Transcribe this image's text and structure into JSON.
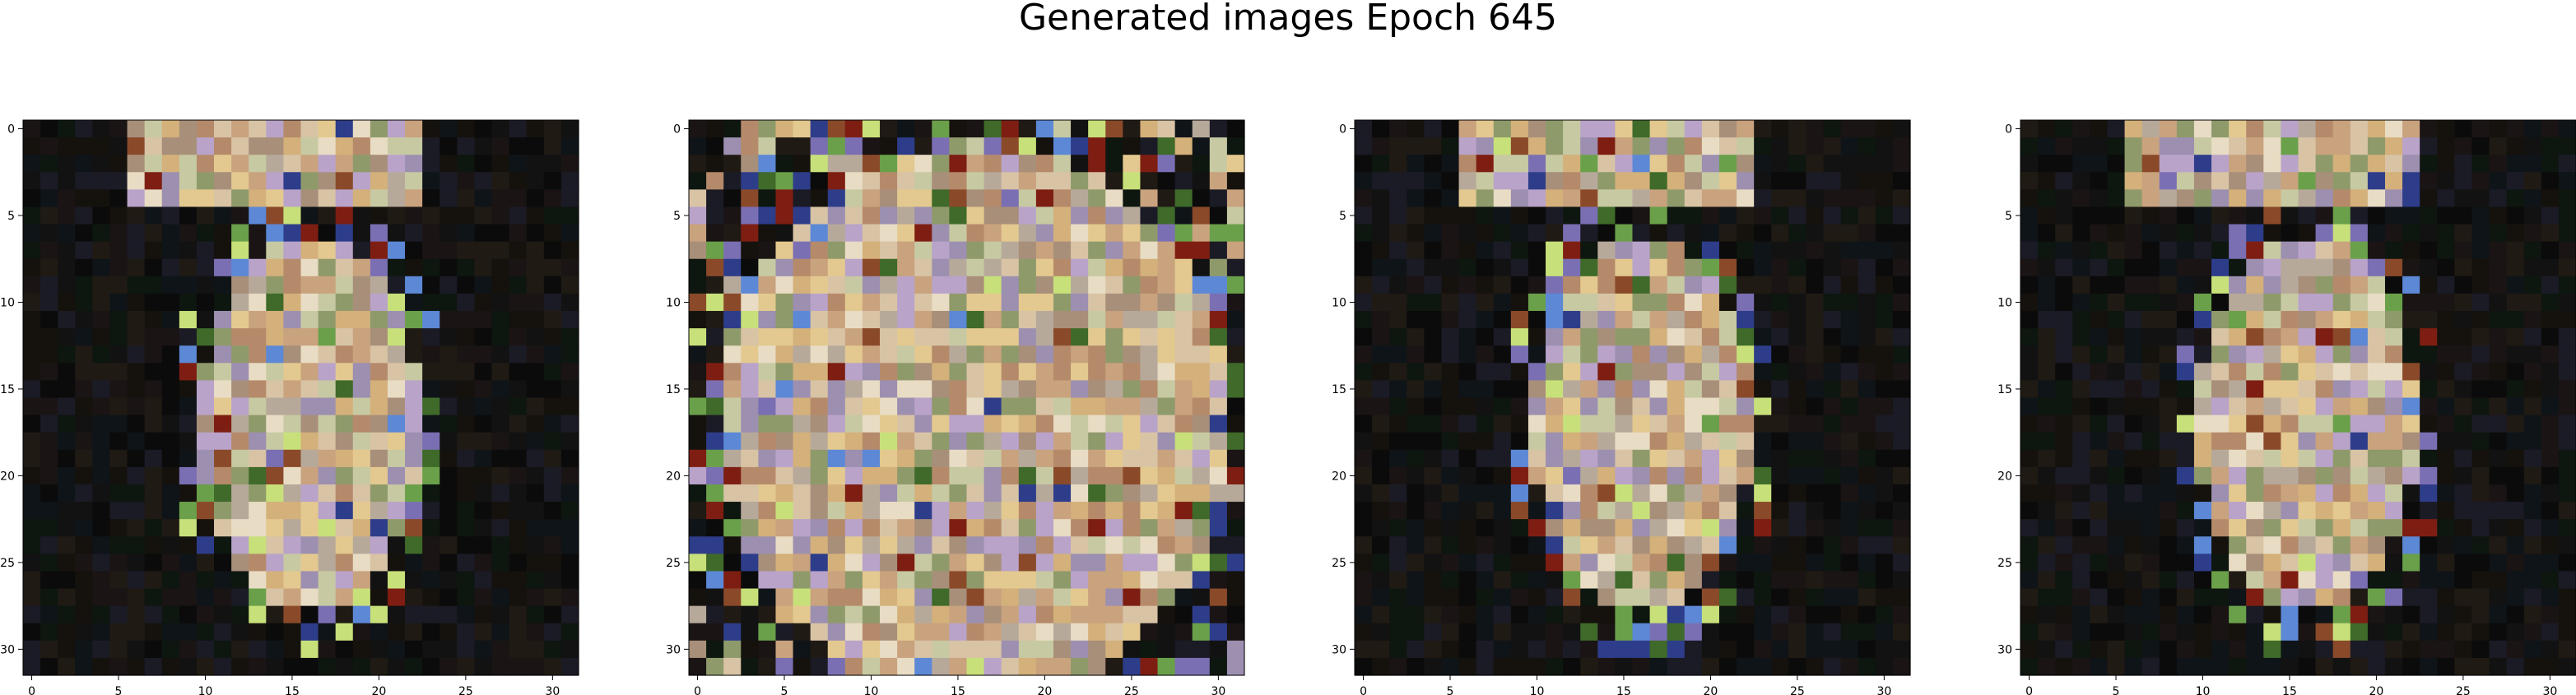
{
  "figure": {
    "suptitle": "Generated images Epoch 645"
  },
  "chart_data": {
    "type": "heatmap",
    "title": "Generated images Epoch 645",
    "description_note": "",
    "grid_size": [
      32,
      32
    ],
    "x_ticks": [
      "0",
      "5",
      "10",
      "15",
      "20",
      "25",
      "30"
    ],
    "y_ticks": [
      "0",
      "5",
      "10",
      "15",
      "20",
      "25",
      "30"
    ],
    "xlim": [
      -0.5,
      31.5
    ],
    "ylim": [
      31.5,
      -0.5
    ],
    "grid": false,
    "panels": [
      {
        "id": "panel-1",
        "profile": "sparse",
        "seed": 11
      },
      {
        "id": "panel-2",
        "profile": "dense",
        "seed": 23
      },
      {
        "id": "panel-3",
        "profile": "sparse",
        "seed": 37
      },
      {
        "id": "panel-4",
        "profile": "sparse-dark",
        "seed": 51
      }
    ],
    "palette_bright": [
      "#d8c3a5",
      "#c9a27e",
      "#e8dcc4",
      "#b7a99a",
      "#a88f7a",
      "#d4b07a",
      "#9d8fb0",
      "#c7c9a2",
      "#b58a6a",
      "#e3c98f",
      "#8f9a6b",
      "#b9a3c9"
    ],
    "palette_dark": [
      "#0b0b0b",
      "#121212",
      "#1a1414",
      "#0f1418",
      "#15120d",
      "#1b1b26",
      "#0d160f",
      "#201a14"
    ],
    "palette_accent": [
      "#7e1e12",
      "#2e3d8a",
      "#6aa04a",
      "#c8e07a",
      "#5c88d6",
      "#8a4a2a",
      "#3f6a2a",
      "#7b6fb3"
    ]
  }
}
